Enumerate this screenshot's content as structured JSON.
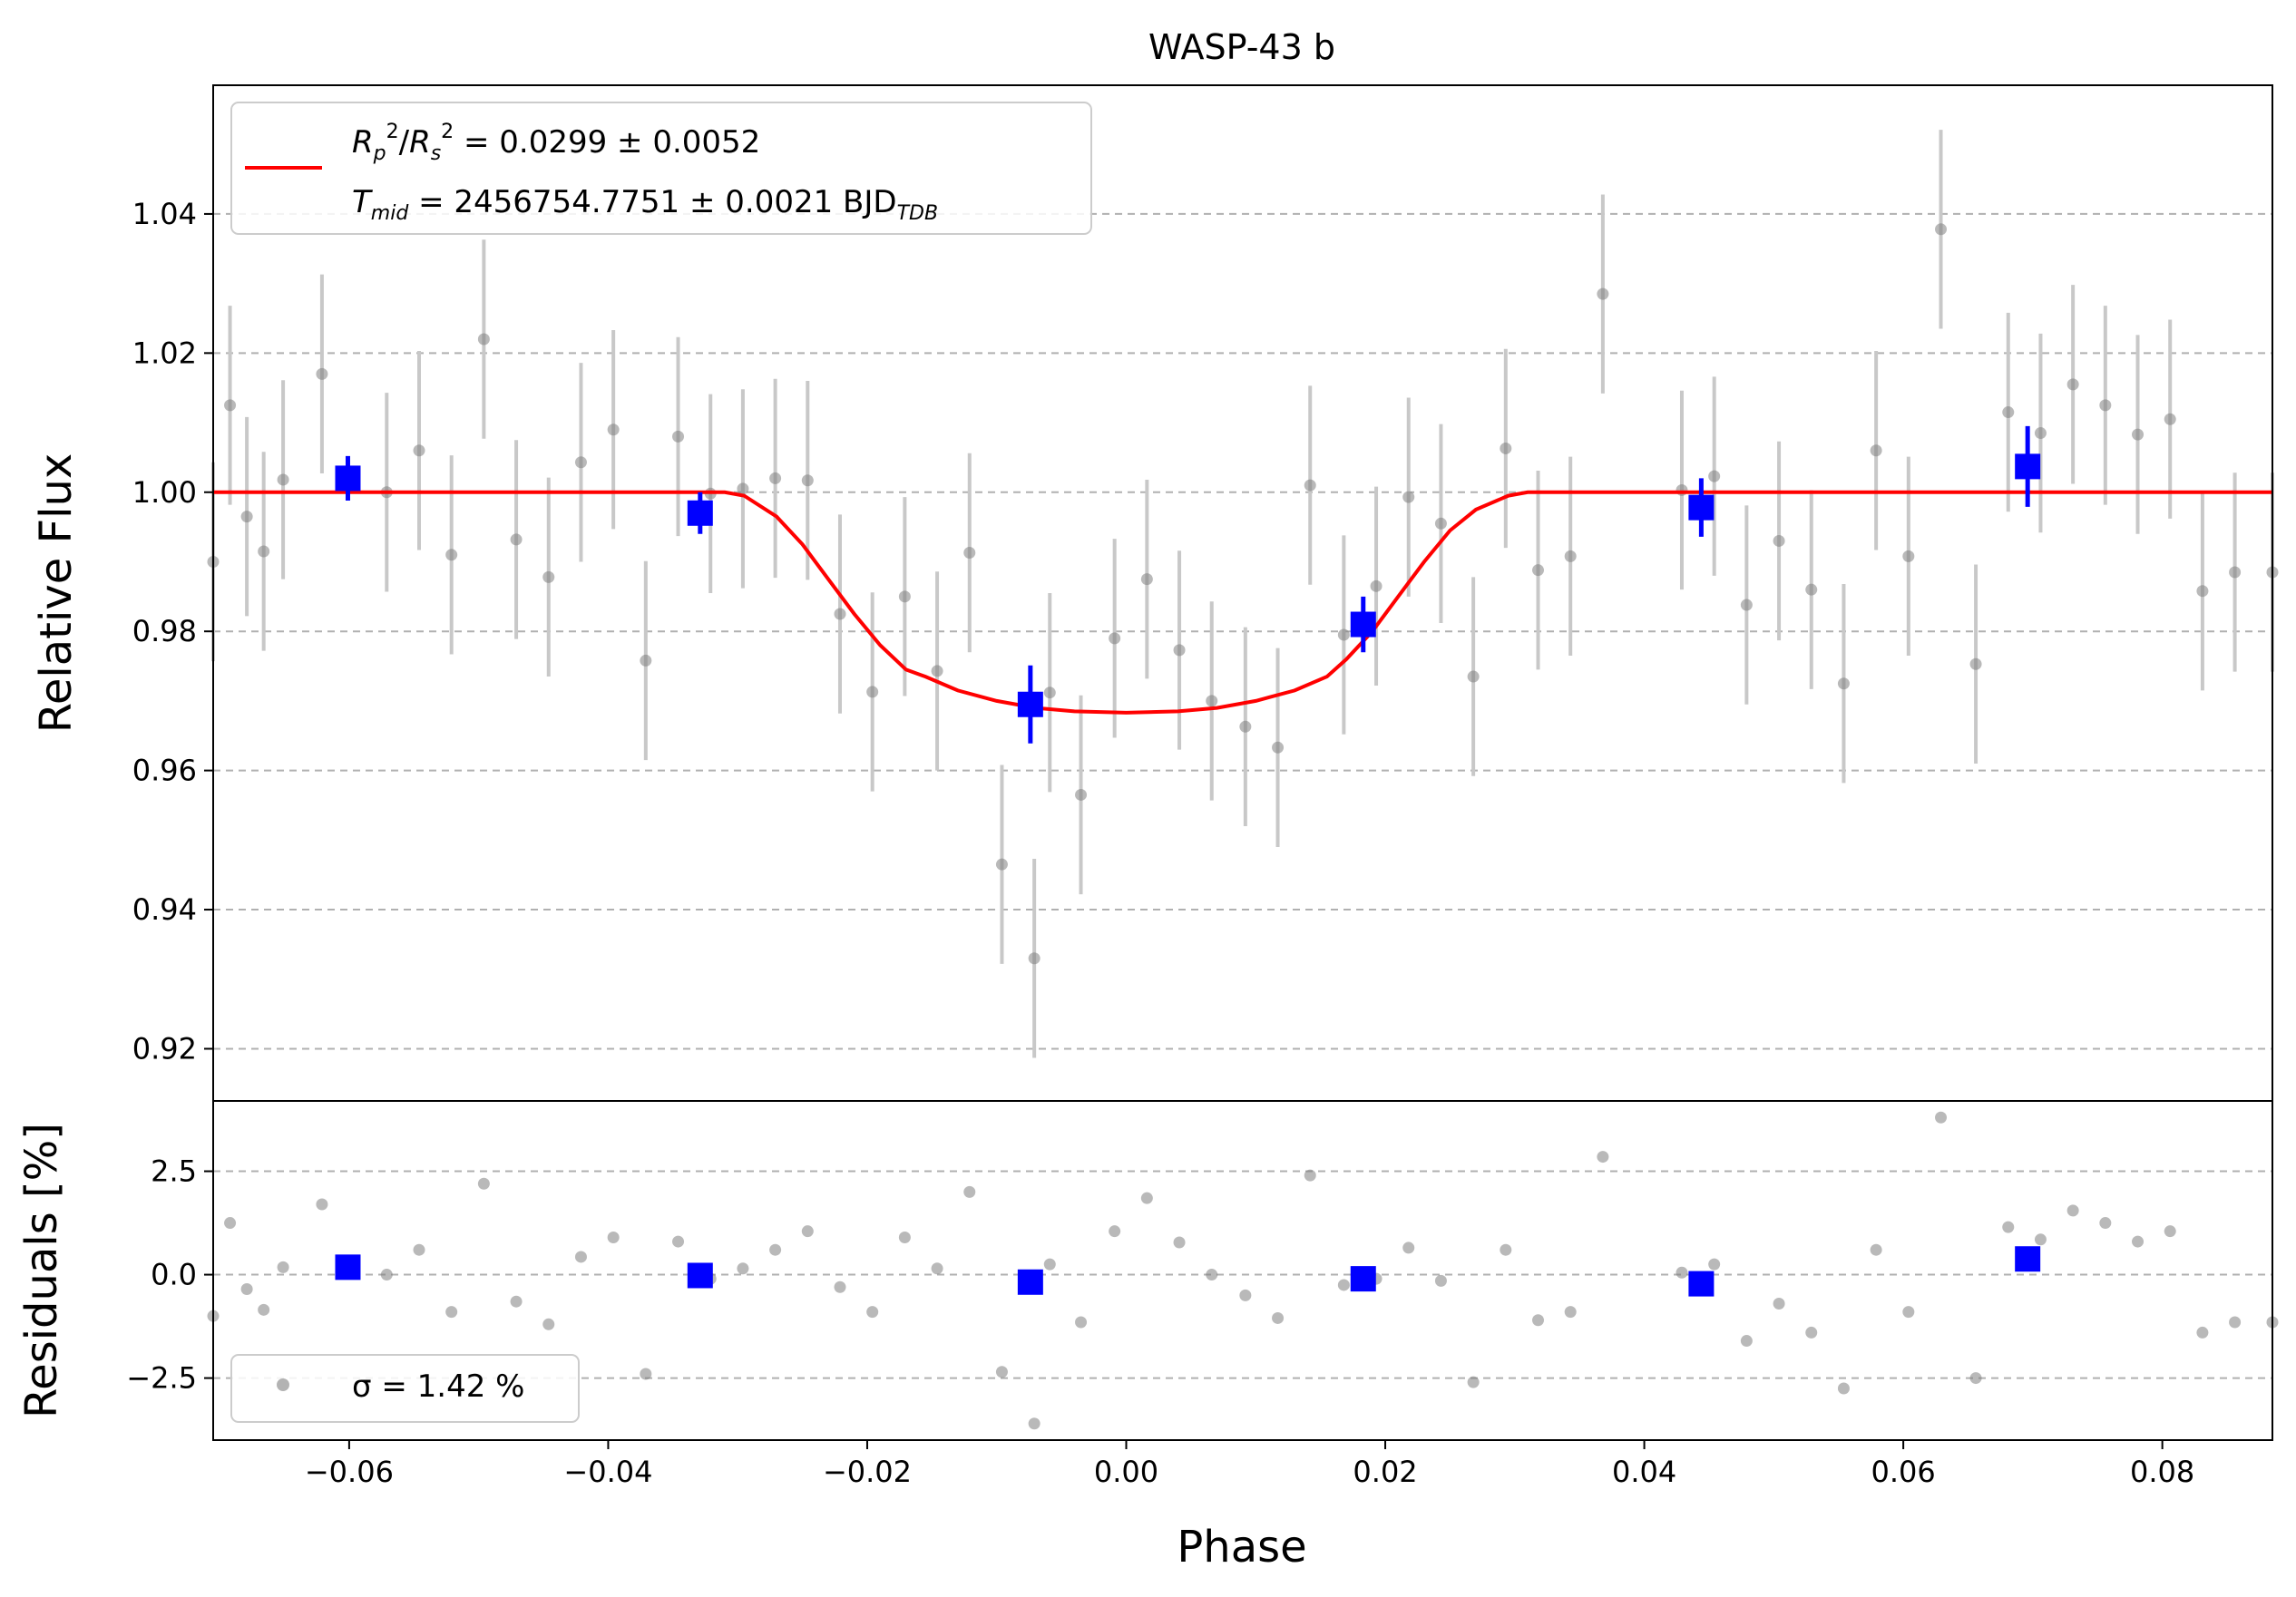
{
  "chart_data": {
    "type": "scatter",
    "title": "WASP-43 b",
    "xlabel": "Phase",
    "xlim": [
      -0.0705,
      0.0885
    ],
    "grid": "y-dashed",
    "top_panel": {
      "ylabel": "Relative Flux",
      "ylim": [
        0.9125,
        1.0585
      ],
      "yticks": [
        0.92,
        0.94,
        0.96,
        0.98,
        1.0,
        1.02,
        1.04
      ],
      "ytick_labels": [
        "0.92",
        "0.94",
        "0.96",
        "0.98",
        "1.00",
        "1.02",
        "1.04"
      ],
      "legend": {
        "placement": "upper-left",
        "line1": "R_p^2/R_s^2 = 0.0299 ± 0.0052",
        "line2": "T_mid = 2456754.7751 ± 0.0021 BJD_TDB"
      },
      "model": {
        "color": "#ff0000",
        "x": [
          -0.0705,
          -0.031,
          -0.0295,
          -0.027,
          -0.025,
          -0.023,
          -0.021,
          -0.019,
          -0.017,
          -0.0155,
          -0.013,
          -0.01,
          -0.007,
          -0.004,
          0.0,
          0.004,
          0.007,
          0.01,
          0.013,
          0.0155,
          0.017,
          0.019,
          0.021,
          0.023,
          0.025,
          0.027,
          0.0295,
          0.031,
          0.0885
        ],
        "y": [
          1.0,
          1.0,
          0.9995,
          0.9965,
          0.9925,
          0.9875,
          0.9825,
          0.978,
          0.9745,
          0.9735,
          0.9715,
          0.97,
          0.969,
          0.9685,
          0.9683,
          0.9685,
          0.969,
          0.97,
          0.9715,
          0.9735,
          0.976,
          0.98,
          0.985,
          0.99,
          0.9945,
          0.9975,
          0.9995,
          1.0,
          1.0
        ]
      },
      "raw_points": {
        "color": "#808080",
        "error_color": "#c8c8c8",
        "x": [
          -0.0705,
          -0.0692,
          -0.0679,
          -0.0666,
          -0.0651,
          -0.0621,
          -0.0571,
          -0.0546,
          -0.0521,
          -0.0496,
          -0.0471,
          -0.0446,
          -0.0421,
          -0.0396,
          -0.0371,
          -0.0346,
          -0.0321,
          -0.0296,
          -0.0271,
          -0.0246,
          -0.0221,
          -0.0196,
          -0.0171,
          -0.0146,
          -0.0121,
          -0.0096,
          -0.0071,
          -0.0059,
          -0.0035,
          -0.0009,
          0.0016,
          0.0041,
          0.0066,
          0.0092,
          0.0117,
          0.0142,
          0.0168,
          0.0193,
          0.0218,
          0.0243,
          0.0268,
          0.0293,
          0.0318,
          0.0343,
          0.0368,
          0.0429,
          0.0454,
          0.0479,
          0.0504,
          0.0529,
          0.0554,
          0.0579,
          0.0604,
          0.0629,
          0.0656,
          0.0681,
          0.0706,
          0.0731,
          0.0756,
          0.0781,
          0.0806,
          0.0831,
          0.0856,
          0.0885
        ],
        "y": [
          0.99,
          1.0125,
          0.9965,
          0.9915,
          1.0018,
          1.017,
          1.0,
          1.006,
          0.991,
          1.022,
          0.9932,
          0.9878,
          1.0043,
          1.009,
          0.9758,
          1.008,
          0.9998,
          1.0005,
          1.002,
          1.0017,
          0.9825,
          0.9713,
          0.985,
          0.9743,
          0.9913,
          0.9465,
          0.933,
          0.9712,
          0.9565,
          0.979,
          0.9875,
          0.9773,
          0.97,
          0.9663,
          0.9633,
          1.001,
          0.9795,
          0.9865,
          0.9993,
          0.9955,
          0.9735,
          1.0063,
          0.9888,
          0.9908,
          1.0285,
          1.0003,
          1.0023,
          0.9838,
          0.993,
          0.986,
          0.9725,
          1.006,
          0.9908,
          1.0378,
          0.9753,
          1.0115,
          1.0085,
          1.0155,
          1.0125,
          1.0083,
          1.0105,
          0.9858,
          0.9885,
          0.9885
        ],
        "err": [
          0.0143,
          0.0143,
          0.0143,
          0.0143,
          0.0143,
          0.0143,
          0.0143,
          0.0143,
          0.0143,
          0.0143,
          0.0143,
          0.0143,
          0.0143,
          0.0143,
          0.0143,
          0.0143,
          0.0143,
          0.0143,
          0.0143,
          0.0143,
          0.0143,
          0.0143,
          0.0143,
          0.0143,
          0.0143,
          0.0143,
          0.0143,
          0.0143,
          0.0143,
          0.0143,
          0.0143,
          0.0143,
          0.0143,
          0.0143,
          0.0143,
          0.0143,
          0.0143,
          0.0143,
          0.0143,
          0.0143,
          0.0143,
          0.0143,
          0.0143,
          0.0143,
          0.0143,
          0.0143,
          0.0143,
          0.0143,
          0.0143,
          0.0143,
          0.0143,
          0.0143,
          0.0143,
          0.0143,
          0.0143,
          0.0143,
          0.0143,
          0.0143,
          0.0143,
          0.0143,
          0.0143,
          0.0143,
          0.0143,
          0.0143
        ]
      },
      "binned_points": {
        "color": "#0000ff",
        "x": [
          -0.0601,
          -0.0329,
          -0.0074,
          0.0183,
          0.0444,
          0.0696
        ],
        "y": [
          1.002,
          0.997,
          0.9695,
          0.981,
          0.9978,
          1.0037
        ],
        "err": [
          0.0032,
          0.003,
          0.0056,
          0.004,
          0.0042,
          0.0058
        ]
      }
    },
    "bottom_panel": {
      "ylabel": "Residuals [%]",
      "ylim": [
        -4.0,
        4.2
      ],
      "yticks": [
        -2.5,
        0.0,
        2.5
      ],
      "ytick_labels": [
        "−2.5",
        "0.0",
        "2.5"
      ],
      "legend": {
        "placement": "lower-left",
        "label": "σ = 1.42 %"
      },
      "raw_points": {
        "x": [
          -0.0705,
          -0.0692,
          -0.0679,
          -0.0666,
          -0.0651,
          -0.0621,
          -0.0571,
          -0.0546,
          -0.0521,
          -0.0496,
          -0.0471,
          -0.0446,
          -0.0421,
          -0.0396,
          -0.0371,
          -0.0346,
          -0.0321,
          -0.0296,
          -0.0271,
          -0.0246,
          -0.0221,
          -0.0196,
          -0.0171,
          -0.0146,
          -0.0121,
          -0.0096,
          -0.0071,
          -0.0059,
          -0.0035,
          -0.0009,
          0.0016,
          0.0041,
          0.0066,
          0.0092,
          0.0117,
          0.0142,
          0.0168,
          0.0193,
          0.0218,
          0.0243,
          0.0268,
          0.0293,
          0.0318,
          0.0343,
          0.0368,
          0.0429,
          0.0454,
          0.0479,
          0.0504,
          0.0529,
          0.0554,
          0.0579,
          0.0604,
          0.0629,
          0.0656,
          0.0681,
          0.0706,
          0.0731,
          0.0756,
          0.0781,
          0.0806,
          0.0831,
          0.0856,
          0.0885
        ],
        "y": [
          -1.0,
          1.25,
          -0.35,
          -0.85,
          0.18,
          1.7,
          0.0,
          0.6,
          -0.9,
          2.2,
          -0.65,
          -1.2,
          0.43,
          0.9,
          -2.4,
          0.8,
          -0.1,
          0.15,
          0.6,
          1.05,
          -0.3,
          -0.9,
          0.9,
          0.15,
          2.0,
          -2.35,
          -3.6,
          0.25,
          -1.15,
          1.05,
          1.85,
          0.78,
          0.0,
          -0.5,
          -1.05,
          2.4,
          -0.25,
          -0.1,
          0.65,
          -0.15,
          -2.6,
          0.6,
          -1.1,
          -0.9,
          2.85,
          0.05,
          0.25,
          -1.6,
          -0.7,
          -1.4,
          -2.75,
          0.6,
          -0.9,
          3.8,
          -2.5,
          1.15,
          0.85,
          1.55,
          1.25,
          0.8,
          1.05,
          -1.4,
          -1.15,
          -1.15
        ]
      },
      "binned_points": {
        "x": [
          -0.0601,
          -0.0329,
          -0.0074,
          0.0183,
          0.0444,
          0.0696
        ],
        "y": [
          0.18,
          -0.02,
          -0.18,
          -0.1,
          -0.22,
          0.38
        ]
      }
    },
    "xticks": [
      -0.06,
      -0.04,
      -0.02,
      0.0,
      0.02,
      0.04,
      0.06,
      0.08
    ],
    "xtick_labels": [
      "−0.06",
      "−0.04",
      "−0.02",
      "0.00",
      "0.02",
      "0.04",
      "0.06",
      "0.08"
    ]
  }
}
